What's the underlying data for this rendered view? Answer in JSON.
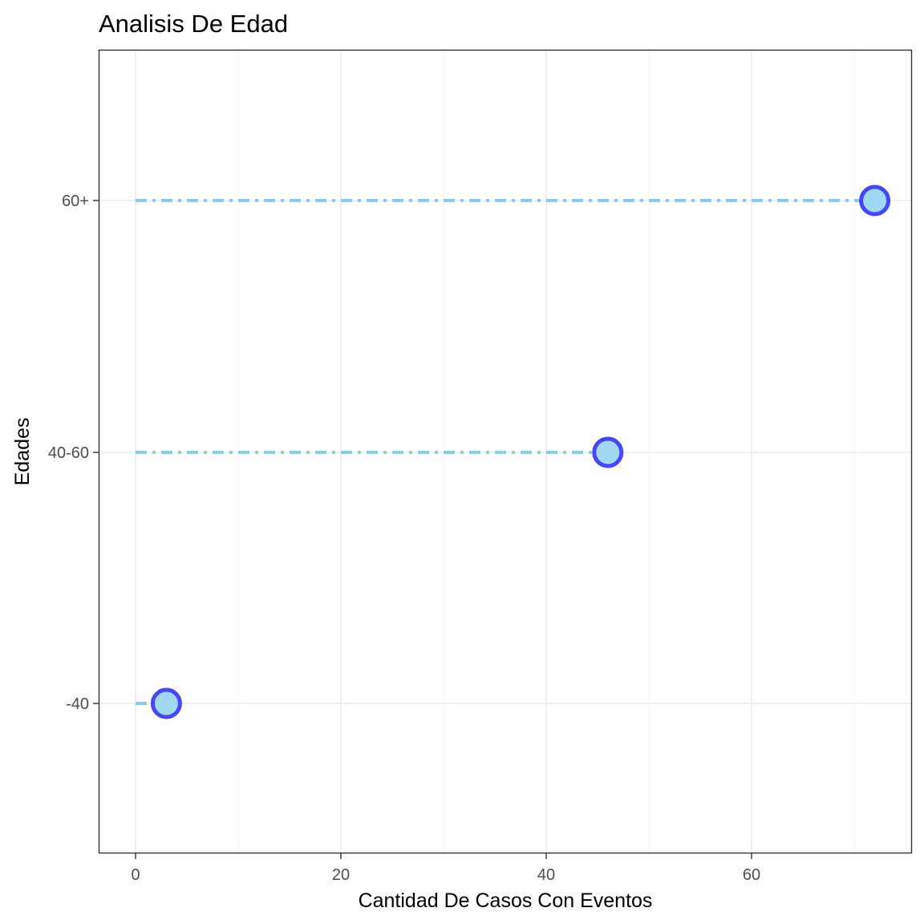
{
  "chart_data": {
    "type": "lollipop",
    "title": "Analisis De Edad",
    "xlabel": "Cantidad De Casos Con Eventos",
    "ylabel": "Edades",
    "categories": [
      "-40",
      "40-60",
      "60+"
    ],
    "values": [
      3,
      46,
      72
    ],
    "xlim": [
      -3.6,
      75.6
    ],
    "x_ticks": [
      0,
      20,
      40,
      60
    ],
    "x_tick_labels": [
      "0",
      "20",
      "40",
      "60"
    ],
    "grid": true,
    "theme": "bw",
    "colors": {
      "segment": "#87CEEB",
      "point_fill": "#9FD8F0",
      "point_stroke": "#4646FF",
      "grid_major": "#EBEBEB",
      "grid_minor": "#F5F5F5",
      "panel_border": "#333333",
      "axis_text": "#4D4D4D"
    }
  }
}
